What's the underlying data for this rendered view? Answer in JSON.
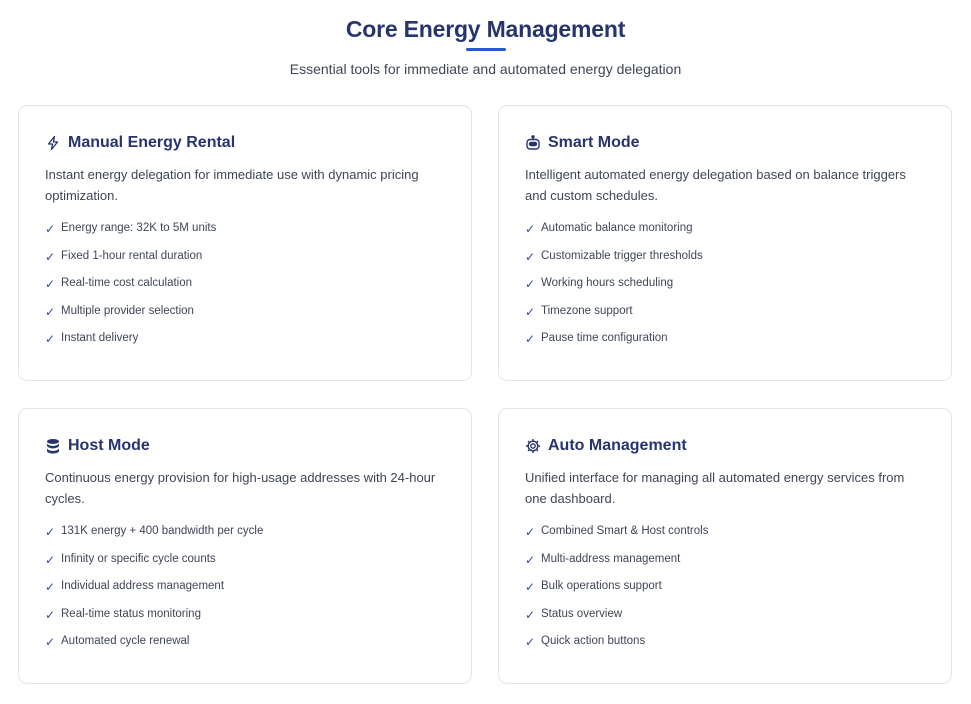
{
  "header": {
    "title": "Core Energy Management",
    "subtitle": "Essential tools for immediate and automated energy delegation",
    "accent": "#2557d6"
  },
  "cards": [
    {
      "icon": "lightning-icon",
      "title": "Manual Energy Rental",
      "description": "Instant energy delegation for immediate use with dynamic pricing optimization.",
      "features": [
        "Energy range: 32K to 5M units",
        "Fixed 1-hour rental duration",
        "Real-time cost calculation",
        "Multiple provider selection",
        "Instant delivery"
      ]
    },
    {
      "icon": "robot-icon",
      "title": "Smart Mode",
      "description": "Intelligent automated energy delegation based on balance triggers and custom schedules.",
      "features": [
        "Automatic balance monitoring",
        "Customizable trigger thresholds",
        "Working hours scheduling",
        "Timezone support",
        "Pause time configuration"
      ]
    },
    {
      "icon": "database-icon",
      "title": "Host Mode",
      "description": "Continuous energy provision for high-usage addresses with 24-hour cycles.",
      "features": [
        "131K energy + 400 bandwidth per cycle",
        "Infinity or specific cycle counts",
        "Individual address management",
        "Real-time status monitoring",
        "Automated cycle renewal"
      ]
    },
    {
      "icon": "gear-icon",
      "title": "Auto Management",
      "description": "Unified interface for managing all automated energy services from one dashboard.",
      "features": [
        "Combined Smart & Host controls",
        "Multi-address management",
        "Bulk operations support",
        "Status overview",
        "Quick action buttons"
      ]
    }
  ],
  "check_glyph": "✓"
}
